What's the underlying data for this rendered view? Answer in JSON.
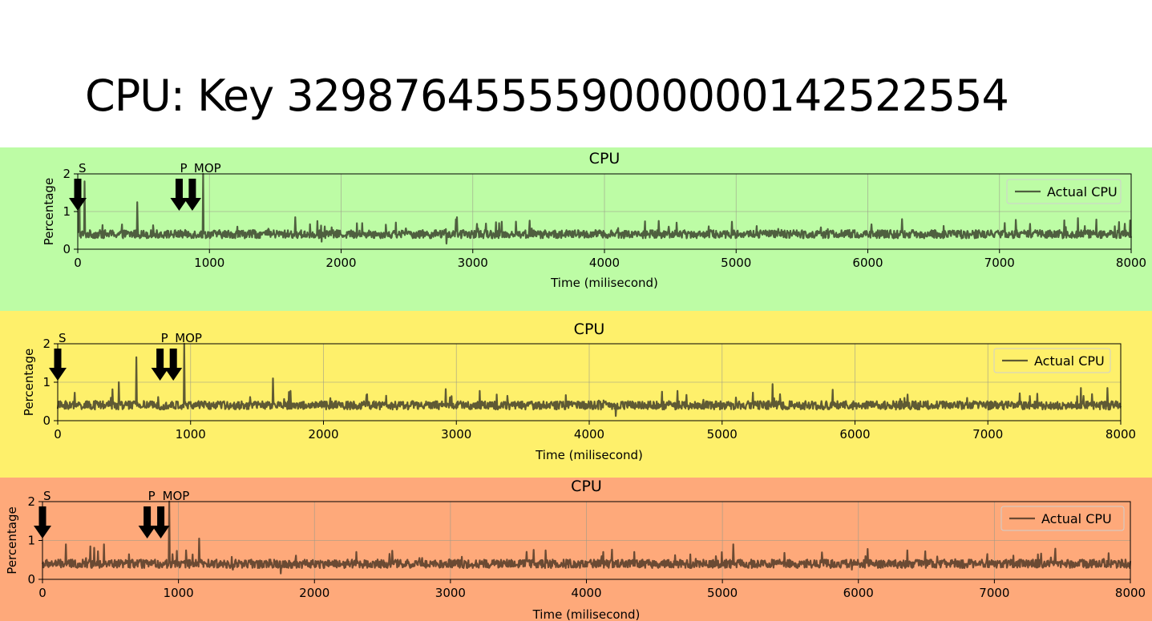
{
  "slide": {
    "title_prefix": "CPU: Key ",
    "title_key": "329876455559000000142522554"
  },
  "chart_data": [
    {
      "type": "line",
      "title": "CPU",
      "xlabel": "Time (milisecond)",
      "ylabel": "Percentage",
      "xlim": [
        0,
        8000
      ],
      "ylim": [
        0,
        2
      ],
      "xticks": [
        0,
        1000,
        2000,
        3000,
        4000,
        5000,
        6000,
        7000,
        8000
      ],
      "yticks": [
        0,
        1,
        2
      ],
      "grid": true,
      "legend": "top-right",
      "background": "#bdfca5",
      "line_color": "#4f5f3f",
      "series": [
        {
          "name": "Actual CPU",
          "baseline": 0.4,
          "spikes": [
            [
              10,
              1.8
            ],
            [
              50,
              1.8
            ],
            [
              450,
              1.25
            ],
            [
              950,
              2.0
            ],
            [
              1650,
              0.85
            ],
            [
              1820,
              0.75
            ],
            [
              2880,
              0.85
            ]
          ],
          "dips": [
            [
              2800,
              0.15
            ],
            [
              1850,
              0.2
            ]
          ]
        }
      ],
      "markers": [
        {
          "label": "S",
          "x": 0
        },
        {
          "label": "P",
          "x": 770
        },
        {
          "label": "MOP",
          "x": 870
        }
      ]
    },
    {
      "type": "line",
      "title": "CPU",
      "xlabel": "Time (milisecond)",
      "ylabel": "Percentage",
      "xlim": [
        0,
        8000
      ],
      "ylim": [
        0,
        2
      ],
      "xticks": [
        0,
        1000,
        2000,
        3000,
        4000,
        5000,
        6000,
        7000,
        8000
      ],
      "yticks": [
        0,
        1,
        2
      ],
      "grid": true,
      "legend": "top-right",
      "background": "#fef06b",
      "line_color": "#5f5a34",
      "series": [
        {
          "name": "Actual CPU",
          "baseline": 0.4,
          "spikes": [
            [
              460,
              1.0
            ],
            [
              590,
              1.65
            ],
            [
              950,
              2.0
            ],
            [
              1620,
              1.1
            ],
            [
              5380,
              0.95
            ],
            [
              7700,
              0.85
            ],
            [
              7900,
              0.85
            ]
          ],
          "dips": [
            [
              4200,
              0.12
            ]
          ]
        }
      ],
      "markers": [
        {
          "label": "S",
          "x": 0
        },
        {
          "label": "P",
          "x": 770
        },
        {
          "label": "MOP",
          "x": 870
        }
      ]
    },
    {
      "type": "line",
      "title": "CPU",
      "xlabel": "Time (milisecond)",
      "ylabel": "Percentage",
      "xlim": [
        0,
        8000
      ],
      "ylim": [
        0,
        2
      ],
      "xticks": [
        0,
        1000,
        2000,
        3000,
        4000,
        5000,
        6000,
        7000,
        8000
      ],
      "yticks": [
        0,
        1,
        2
      ],
      "grid": true,
      "legend": "top-right",
      "background": "#fea97a",
      "line_color": "#6b4a33",
      "series": [
        {
          "name": "Actual CPU",
          "baseline": 0.4,
          "spikes": [
            [
              170,
              0.9
            ],
            [
              350,
              0.85
            ],
            [
              450,
              0.9
            ],
            [
              930,
              2.0
            ],
            [
              1150,
              1.05
            ],
            [
              5080,
              0.9
            ]
          ],
          "dips": [
            [
              1750,
              0.15
            ],
            [
              1400,
              0.25
            ],
            [
              5950,
              0.25
            ]
          ]
        }
      ],
      "markers": [
        {
          "label": "S",
          "x": 0
        },
        {
          "label": "P",
          "x": 770
        },
        {
          "label": "MOP",
          "x": 870
        }
      ]
    }
  ]
}
